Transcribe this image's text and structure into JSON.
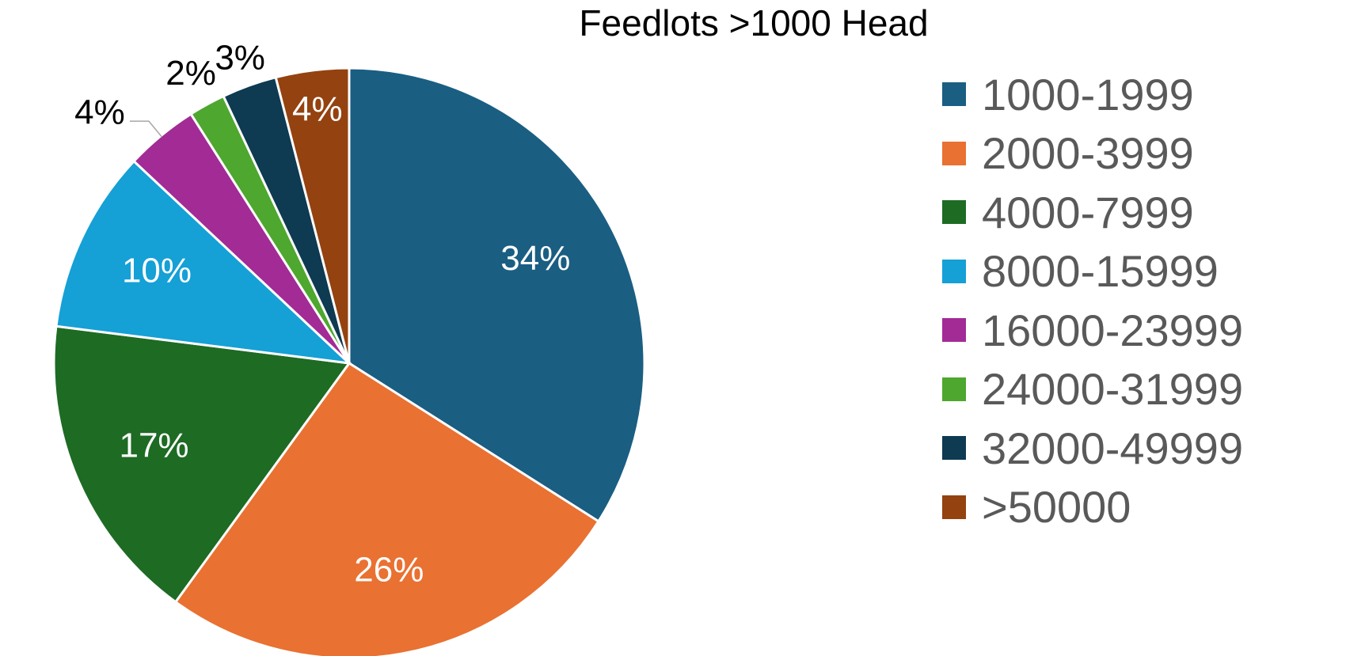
{
  "chart_data": {
    "type": "pie",
    "title": "Feedlots >1000 Head",
    "legend_position": "right",
    "slices": [
      {
        "label": "1000-1999",
        "value": 34,
        "value_label": "34%",
        "color": "#1A5E82"
      },
      {
        "label": "2000-3999",
        "value": 26,
        "value_label": "26%",
        "color": "#E97132"
      },
      {
        "label": "4000-7999",
        "value": 17,
        "value_label": "17%",
        "color": "#1E6B24"
      },
      {
        "label": "8000-15999",
        "value": 10,
        "value_label": "10%",
        "color": "#15A0D6"
      },
      {
        "label": "16000-23999",
        "value": 4,
        "value_label": "4%",
        "color": "#A22B96"
      },
      {
        "label": "24000-31999",
        "value": 2,
        "value_label": "2%",
        "color": "#4EA72E"
      },
      {
        "label": "32000-49999",
        "value": 3,
        "value_label": "3%",
        "color": "#0E3A52"
      },
      {
        "label": ">50000",
        "value": 4,
        "value_label": "4%",
        "color": "#944210"
      }
    ]
  }
}
